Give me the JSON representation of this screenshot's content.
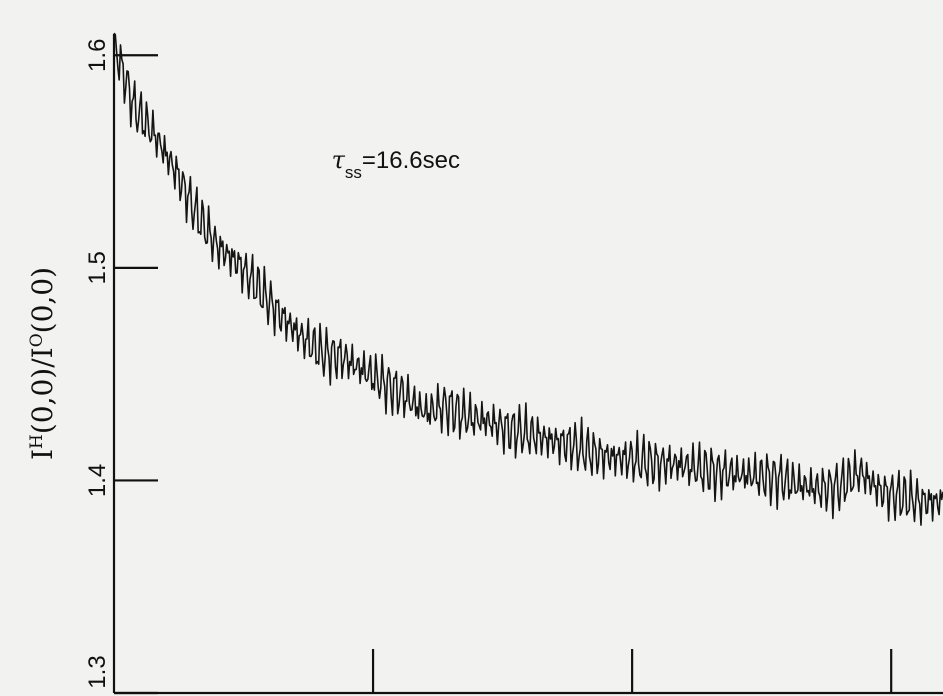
{
  "chart_data": {
    "type": "line",
    "title": "",
    "xlabel": "",
    "ylabel": "I^H(0,0)/I^O(0,0)",
    "ylabel_parts": {
      "base1": "I",
      "sup1": "H",
      "mid": "(0,0)/",
      "base2": "I",
      "sup2": "O",
      "tail": "(0,0)"
    },
    "annotation": {
      "symbol": "τ",
      "subscript": "ss",
      "text": "=16.6sec",
      "x": 42,
      "y": 1.547
    },
    "ylim": [
      1.3,
      1.61
    ],
    "xlim": [
      0,
      160
    ],
    "grid": false,
    "yticks": [
      {
        "value": 1.6,
        "label": "1.6"
      },
      {
        "value": 1.5,
        "label": "1.5"
      },
      {
        "value": 1.4,
        "label": "1.4"
      },
      {
        "value": 1.3,
        "label": "1.3"
      }
    ],
    "xticks": [
      50,
      100,
      150
    ],
    "x": [
      0,
      4,
      8,
      12,
      16,
      20,
      24,
      28,
      32,
      36,
      40,
      44,
      48,
      52,
      56,
      60,
      64,
      68,
      72,
      76,
      80,
      84,
      88,
      92,
      96,
      100,
      104,
      108,
      112,
      116,
      120,
      124,
      128,
      132,
      136,
      140,
      144,
      148,
      152,
      156,
      160
    ],
    "values": [
      1.605,
      1.575,
      1.562,
      1.545,
      1.525,
      1.51,
      1.502,
      1.49,
      1.478,
      1.468,
      1.46,
      1.458,
      1.452,
      1.446,
      1.44,
      1.432,
      1.435,
      1.43,
      1.428,
      1.424,
      1.422,
      1.419,
      1.417,
      1.413,
      1.411,
      1.41,
      1.408,
      1.408,
      1.406,
      1.404,
      1.403,
      1.402,
      1.401,
      1.398,
      1.396,
      1.397,
      1.404,
      1.395,
      1.392,
      1.39,
      1.39
    ]
  }
}
